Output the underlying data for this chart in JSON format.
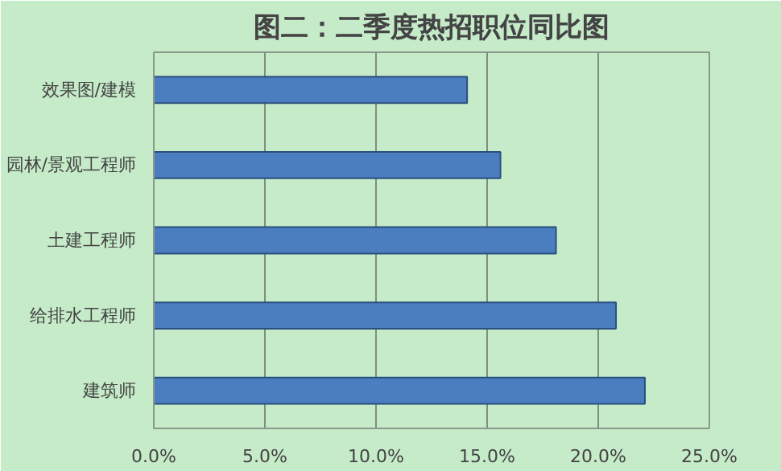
{
  "chart_data": {
    "type": "bar",
    "orientation": "horizontal",
    "title": "图二：二季度热招职位同比图",
    "categories": [
      "效果图/建模",
      "园林/景观工程师",
      "土建工程师",
      "给排水工程师",
      "建筑师"
    ],
    "values": [
      14.1,
      15.6,
      18.1,
      20.8,
      22.1
    ],
    "color": "#4a7ebf",
    "xlim": [
      0,
      25
    ],
    "xticks": [
      {
        "value": 0,
        "label": "0.0%"
      },
      {
        "value": 5,
        "label": "5.0%"
      },
      {
        "value": 10,
        "label": "10.0%"
      },
      {
        "value": 15,
        "label": "15.0%"
      },
      {
        "value": 20,
        "label": "20.0%"
      },
      {
        "value": 25,
        "label": "25.0%"
      }
    ],
    "grid": "x"
  }
}
